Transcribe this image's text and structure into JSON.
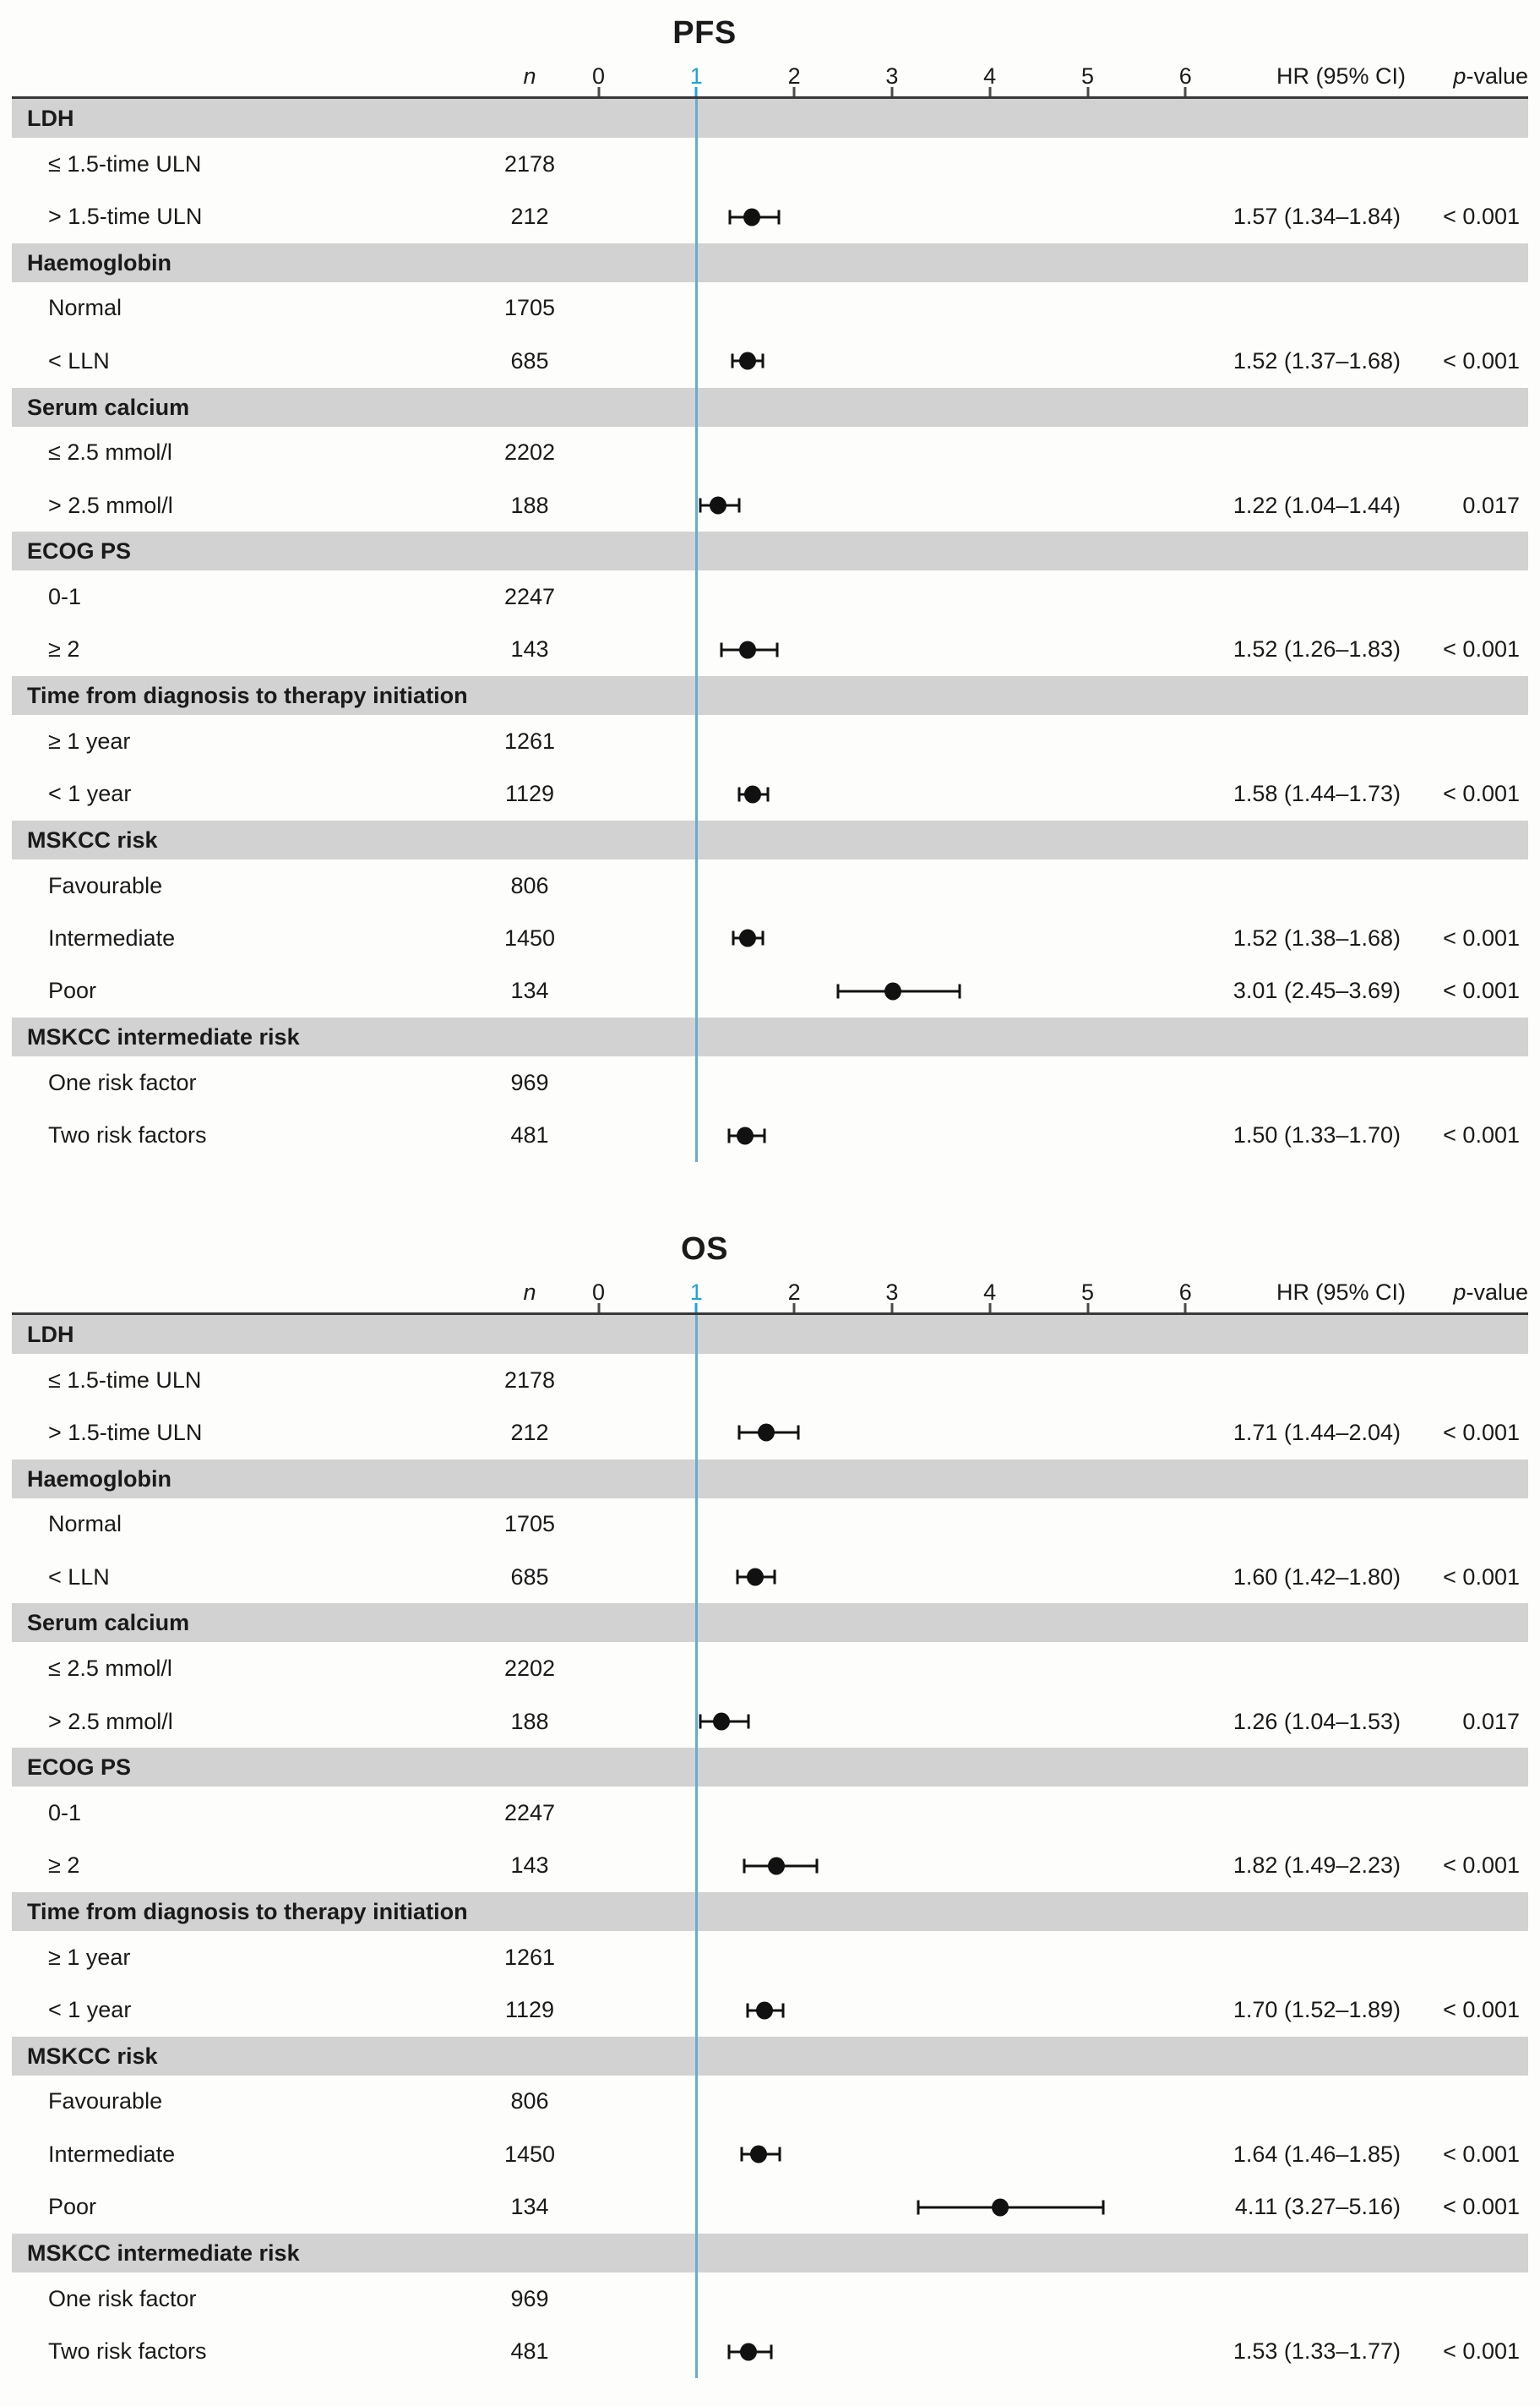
{
  "colors": {
    "accent_blue_label": "#1ea3dc",
    "refline_blue": "#66add2",
    "band_gray": "#d2d2d2",
    "axis_line": "#383838",
    "marker_black": "#111111"
  },
  "chart_data": [
    {
      "type": "forest",
      "title": "PFS",
      "n_label": "n",
      "hr_label": "HR (95% CI)",
      "p_label": {
        "italic": "p",
        "rest": "-value"
      },
      "axis": {
        "min": 0,
        "max": 6,
        "ticks": [
          0,
          1,
          2,
          3,
          4,
          5,
          6
        ],
        "refline": 1,
        "highlight_tick": 1
      },
      "sections": [
        {
          "label": "LDH",
          "rows": [
            {
              "label": "≤ 1.5-time ULN",
              "n": "2178"
            },
            {
              "label": "> 1.5-time ULN",
              "n": "212",
              "est": 1.57,
              "lo": 1.34,
              "hi": 1.84,
              "hr_text": "1.57 (1.34–1.84)",
              "p": "< 0.001"
            }
          ]
        },
        {
          "label": "Haemoglobin",
          "rows": [
            {
              "label": "Normal",
              "n": "1705"
            },
            {
              "label": "< LLN",
              "n": "685",
              "est": 1.52,
              "lo": 1.37,
              "hi": 1.68,
              "hr_text": "1.52 (1.37–1.68)",
              "p": "< 0.001"
            }
          ]
        },
        {
          "label": "Serum calcium",
          "rows": [
            {
              "label": "≤ 2.5 mmol/l",
              "n": "2202"
            },
            {
              "label": "> 2.5 mmol/l",
              "n": "188",
              "est": 1.22,
              "lo": 1.04,
              "hi": 1.44,
              "hr_text": "1.22 (1.04–1.44)",
              "p": "0.017"
            }
          ]
        },
        {
          "label": "ECOG PS",
          "rows": [
            {
              "label": "0-1",
              "n": "2247"
            },
            {
              "label": "≥ 2",
              "n": "143",
              "est": 1.52,
              "lo": 1.26,
              "hi": 1.83,
              "hr_text": "1.52 (1.26–1.83)",
              "p": "< 0.001"
            }
          ]
        },
        {
          "label": "Time from diagnosis to therapy initiation",
          "rows": [
            {
              "label": "≥ 1 year",
              "n": "1261"
            },
            {
              "label": "< 1 year",
              "n": "1129",
              "est": 1.58,
              "lo": 1.44,
              "hi": 1.73,
              "hr_text": "1.58 (1.44–1.73)",
              "p": "< 0.001"
            }
          ]
        },
        {
          "label": "MSKCC risk",
          "rows": [
            {
              "label": "Favourable",
              "n": "806"
            },
            {
              "label": "Intermediate",
              "n": "1450",
              "est": 1.52,
              "lo": 1.38,
              "hi": 1.68,
              "hr_text": "1.52 (1.38–1.68)",
              "p": "< 0.001"
            },
            {
              "label": "Poor",
              "n": "134",
              "est": 3.01,
              "lo": 2.45,
              "hi": 3.69,
              "hr_text": "3.01 (2.45–3.69)",
              "p": "< 0.001"
            }
          ]
        },
        {
          "label": "MSKCC intermediate risk",
          "rows": [
            {
              "label": "One risk factor",
              "n": "969"
            },
            {
              "label": "Two risk factors",
              "n": "481",
              "est": 1.5,
              "lo": 1.33,
              "hi": 1.7,
              "hr_text": "1.50 (1.33–1.70)",
              "p": "< 0.001"
            }
          ]
        }
      ]
    },
    {
      "type": "forest",
      "title": "OS",
      "n_label": "n",
      "hr_label": "HR (95% CI)",
      "p_label": {
        "italic": "p",
        "rest": "-value"
      },
      "axis": {
        "min": 0,
        "max": 6,
        "ticks": [
          0,
          1,
          2,
          3,
          4,
          5,
          6
        ],
        "refline": 1,
        "highlight_tick": 1
      },
      "sections": [
        {
          "label": "LDH",
          "rows": [
            {
              "label": "≤ 1.5-time ULN",
              "n": "2178"
            },
            {
              "label": "> 1.5-time ULN",
              "n": "212",
              "est": 1.71,
              "lo": 1.44,
              "hi": 2.04,
              "hr_text": "1.71 (1.44–2.04)",
              "p": "< 0.001"
            }
          ]
        },
        {
          "label": "Haemoglobin",
          "rows": [
            {
              "label": "Normal",
              "n": "1705"
            },
            {
              "label": "< LLN",
              "n": "685",
              "est": 1.6,
              "lo": 1.42,
              "hi": 1.8,
              "hr_text": "1.60 (1.42–1.80)",
              "p": "< 0.001"
            }
          ]
        },
        {
          "label": "Serum calcium",
          "rows": [
            {
              "label": "≤ 2.5 mmol/l",
              "n": "2202"
            },
            {
              "label": "> 2.5 mmol/l",
              "n": "188",
              "est": 1.26,
              "lo": 1.04,
              "hi": 1.53,
              "hr_text": "1.26 (1.04–1.53)",
              "p": "0.017"
            }
          ]
        },
        {
          "label": "ECOG PS",
          "rows": [
            {
              "label": "0-1",
              "n": "2247"
            },
            {
              "label": "≥ 2",
              "n": "143",
              "est": 1.82,
              "lo": 1.49,
              "hi": 2.23,
              "hr_text": "1.82 (1.49–2.23)",
              "p": "< 0.001"
            }
          ]
        },
        {
          "label": "Time from diagnosis to therapy initiation",
          "rows": [
            {
              "label": "≥ 1 year",
              "n": "1261"
            },
            {
              "label": "< 1 year",
              "n": "1129",
              "est": 1.7,
              "lo": 1.52,
              "hi": 1.89,
              "hr_text": "1.70 (1.52–1.89)",
              "p": "< 0.001"
            }
          ]
        },
        {
          "label": "MSKCC risk",
          "rows": [
            {
              "label": "Favourable",
              "n": "806"
            },
            {
              "label": "Intermediate",
              "n": "1450",
              "est": 1.64,
              "lo": 1.46,
              "hi": 1.85,
              "hr_text": "1.64 (1.46–1.85)",
              "p": "< 0.001"
            },
            {
              "label": "Poor",
              "n": "134",
              "est": 4.11,
              "lo": 3.27,
              "hi": 5.16,
              "hr_text": "4.11 (3.27–5.16)",
              "p": "< 0.001"
            }
          ]
        },
        {
          "label": "MSKCC intermediate risk",
          "rows": [
            {
              "label": "One risk factor",
              "n": "969"
            },
            {
              "label": "Two risk factors",
              "n": "481",
              "est": 1.53,
              "lo": 1.33,
              "hi": 1.77,
              "hr_text": "1.53 (1.33–1.77)",
              "p": "< 0.001"
            }
          ]
        }
      ]
    }
  ]
}
